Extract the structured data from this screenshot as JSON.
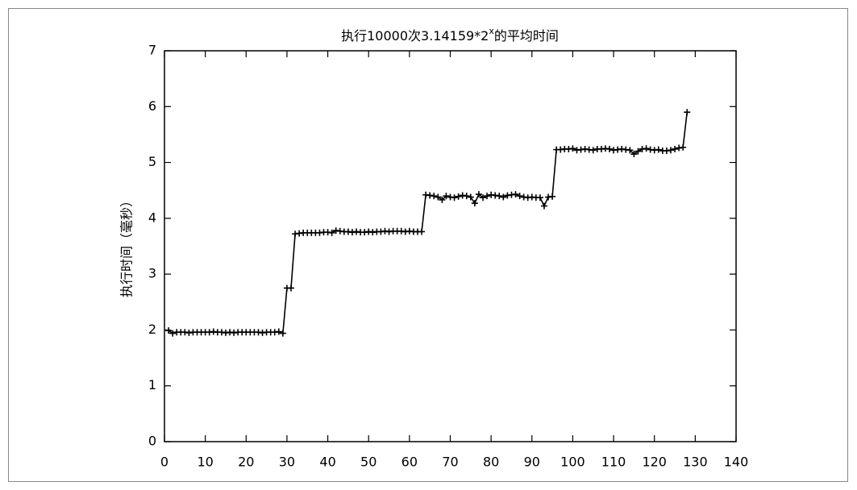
{
  "chart_data": {
    "type": "line",
    "title": "执行10000次3.14159*2",
    "title_sup": "x",
    "title_end": "的平均时间",
    "y_label": "执行时间（毫秒）",
    "x": [
      1,
      2,
      3,
      4,
      5,
      6,
      7,
      8,
      9,
      10,
      11,
      12,
      13,
      14,
      15,
      16,
      17,
      18,
      19,
      20,
      21,
      22,
      23,
      24,
      25,
      26,
      27,
      28,
      29,
      30,
      31,
      32,
      33,
      34,
      35,
      36,
      37,
      38,
      39,
      40,
      41,
      42,
      43,
      44,
      45,
      46,
      47,
      48,
      49,
      50,
      51,
      52,
      53,
      54,
      55,
      56,
      57,
      58,
      59,
      60,
      61,
      62,
      63,
      64,
      65,
      66,
      67,
      68,
      69,
      70,
      71,
      72,
      73,
      74,
      75,
      76,
      77,
      78,
      79,
      80,
      81,
      82,
      83,
      84,
      85,
      86,
      87,
      88,
      89,
      90,
      91,
      92,
      93,
      94,
      95,
      96,
      97,
      98,
      99,
      100,
      101,
      102,
      103,
      104,
      105,
      106,
      107,
      108,
      109,
      110,
      111,
      112,
      113,
      114,
      115,
      116,
      117,
      118,
      119,
      120,
      121,
      122,
      123,
      124,
      125,
      126,
      127,
      128
    ],
    "values": [
      1.99,
      1.94,
      1.96,
      1.96,
      1.96,
      1.95,
      1.96,
      1.96,
      1.96,
      1.96,
      1.96,
      1.97,
      1.96,
      1.96,
      1.95,
      1.96,
      1.95,
      1.96,
      1.96,
      1.96,
      1.96,
      1.96,
      1.96,
      1.95,
      1.96,
      1.96,
      1.96,
      1.97,
      1.94,
      2.75,
      2.75,
      3.72,
      3.73,
      3.74,
      3.74,
      3.74,
      3.74,
      3.74,
      3.75,
      3.75,
      3.74,
      3.78,
      3.77,
      3.76,
      3.76,
      3.75,
      3.76,
      3.75,
      3.75,
      3.76,
      3.75,
      3.76,
      3.76,
      3.77,
      3.76,
      3.77,
      3.77,
      3.77,
      3.76,
      3.77,
      3.76,
      3.76,
      3.76,
      4.42,
      4.41,
      4.4,
      4.38,
      4.33,
      4.4,
      4.38,
      4.37,
      4.39,
      4.41,
      4.4,
      4.38,
      4.27,
      4.43,
      4.37,
      4.4,
      4.42,
      4.41,
      4.4,
      4.38,
      4.41,
      4.42,
      4.43,
      4.4,
      4.38,
      4.37,
      4.38,
      4.37,
      4.37,
      4.22,
      4.38,
      4.39,
      5.23,
      5.23,
      5.24,
      5.24,
      5.25,
      5.22,
      5.23,
      5.24,
      5.23,
      5.22,
      5.24,
      5.24,
      5.25,
      5.24,
      5.22,
      5.23,
      5.24,
      5.23,
      5.22,
      5.15,
      5.2,
      5.24,
      5.25,
      5.23,
      5.22,
      5.23,
      5.21,
      5.21,
      5.22,
      5.24,
      5.26,
      5.27,
      5.9
    ],
    "color": "#000000",
    "xlim": [
      0,
      140
    ],
    "xticks": [
      0,
      10,
      20,
      30,
      40,
      50,
      60,
      70,
      80,
      90,
      100,
      110,
      120,
      130,
      140
    ],
    "ylim": [
      0,
      7
    ],
    "yticks": [
      0,
      1,
      2,
      3,
      4,
      5,
      6,
      7
    ],
    "markers": true
  }
}
